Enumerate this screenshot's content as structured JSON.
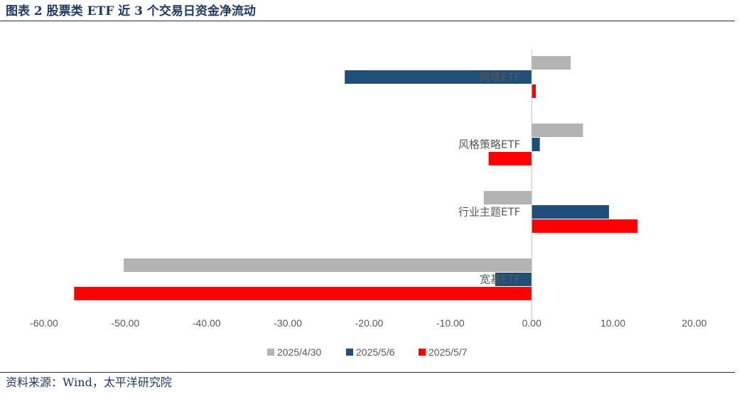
{
  "header": {
    "title": "图表 2  股票类 ETF 近 3 个交易日资金净流动"
  },
  "footer": {
    "source": "资料来源：Wind，太平洋研究院"
  },
  "chart_data": {
    "type": "bar",
    "orientation": "horizontal",
    "categories": [
      "跨境ETF",
      "风格策略ETF",
      "行业主题ETF",
      "宽基ETF"
    ],
    "series": [
      {
        "name": "2025/4/30",
        "color": "#b3b3b3",
        "values": [
          4.8,
          6.3,
          -5.9,
          -50.2
        ]
      },
      {
        "name": "2025/5/6",
        "color": "#1f4e79",
        "values": [
          -23.0,
          1.0,
          9.5,
          -4.5
        ]
      },
      {
        "name": "2025/5/7",
        "color": "#ff0000",
        "values": [
          0.5,
          -5.3,
          13.0,
          -56.3
        ]
      }
    ],
    "xlim": [
      -60,
      20
    ],
    "xticks": [
      "-60.00",
      "-50.00",
      "-40.00",
      "-30.00",
      "-20.00",
      "-10.00",
      "0.00",
      "10.00",
      "20.00"
    ],
    "xtick_values": [
      -60,
      -50,
      -40,
      -30,
      -20,
      -10,
      0,
      10,
      20
    ],
    "legend_position": "bottom",
    "grid": false
  }
}
